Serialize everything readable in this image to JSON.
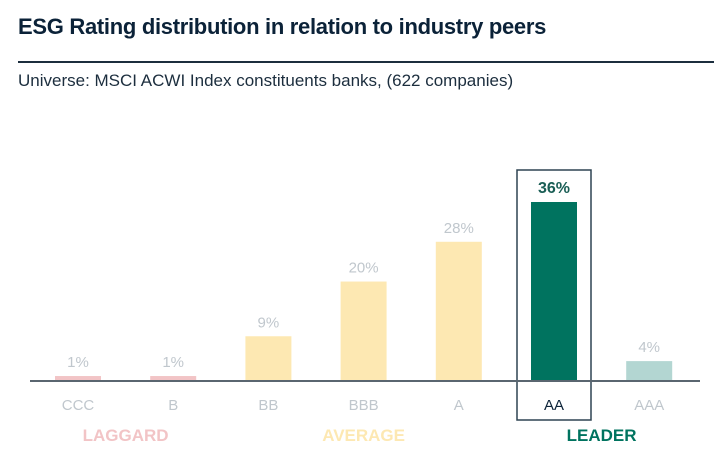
{
  "header": {
    "title": "ESG Rating distribution in relation to industry peers",
    "subtitle": "Universe: MSCI ACWI Index constituents banks, (622 companies)"
  },
  "chart_data": {
    "type": "bar",
    "title": "ESG Rating distribution in relation to industry peers",
    "subtitle": "Universe: MSCI ACWI Index constituents banks, (622 companies)",
    "categories": [
      "CCC",
      "B",
      "BB",
      "BBB",
      "A",
      "AA",
      "AAA"
    ],
    "values": [
      1,
      1,
      9,
      20,
      28,
      36,
      4
    ],
    "value_labels": [
      "1%",
      "1%",
      "9%",
      "20%",
      "28%",
      "36%",
      "4%"
    ],
    "highlighted": "AA",
    "bar_colors": [
      "#f2c4c6",
      "#f2c4c6",
      "#fde8b2",
      "#fde8b2",
      "#fde8b2",
      "#00735f",
      "#b3d6d2"
    ],
    "label_colors": {
      "muted": "#c0c7cd",
      "highlight_value": "#1a5e55",
      "highlight_category": "#0b2238"
    },
    "ylim": [
      0,
      36
    ],
    "grid": false,
    "groups": [
      {
        "label": "LAGGARD",
        "color": "#f2c4c6",
        "categories": [
          "CCC",
          "B"
        ]
      },
      {
        "label": "AVERAGE",
        "color": "#fde8b2",
        "categories": [
          "BB",
          "BBB",
          "A"
        ]
      },
      {
        "label": "LEADER",
        "color": "#00735f",
        "categories": [
          "AA",
          "AAA"
        ]
      }
    ],
    "axis_color": "#5a6670"
  }
}
